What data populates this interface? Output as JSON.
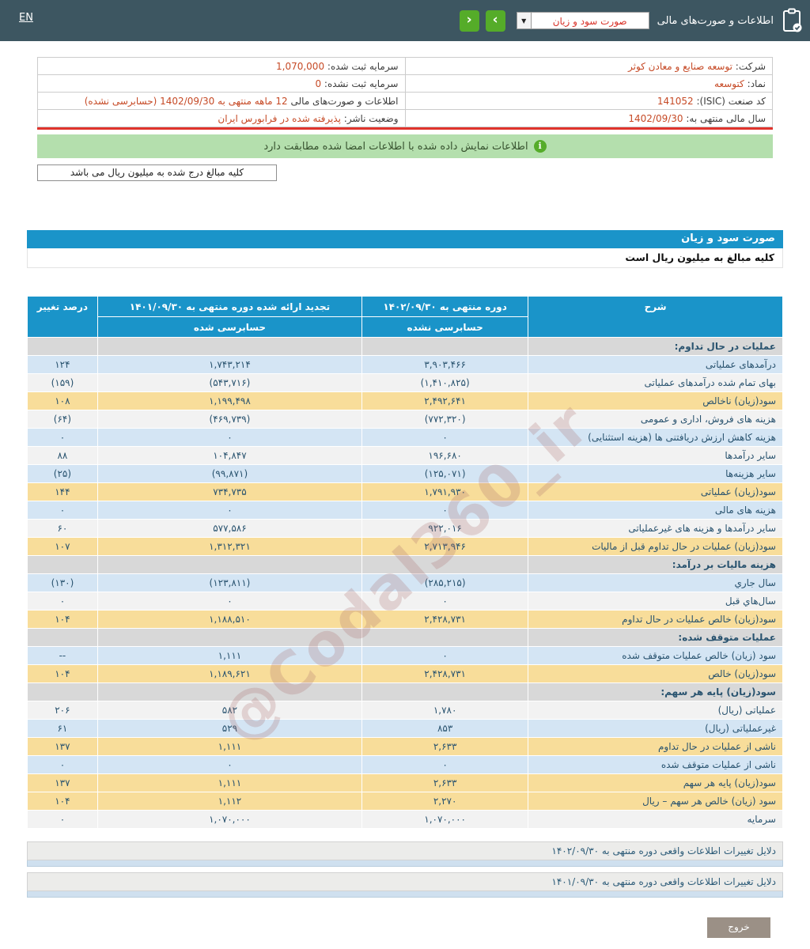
{
  "topbar": {
    "lang_link": "EN",
    "title": "اطلاعات و صورت‌های مالی",
    "report_select_value": "صورت سود و زیان",
    "select_arrow": "▼",
    "nav_left": "‹",
    "nav_right": "›"
  },
  "company_info": {
    "rows": [
      {
        "right_label": "شرکت:",
        "right_value": "توسعه صنایع و معادن کوثر",
        "left_label": "سرمایه ثبت شده:",
        "left_value": "1,070,000"
      },
      {
        "right_label": "نماد:",
        "right_value": "کتوسعه",
        "left_label": "سرمایه ثبت نشده:",
        "left_value": "0"
      },
      {
        "right_label": "کد صنعت (ISIC):",
        "right_value": "141052",
        "left_label": "اطلاعات و صورت‌های مالی",
        "left_value": "12 ماهه منتهی به 1402/09/30 (حسابرسی نشده)"
      },
      {
        "right_label": "سال مالی منتهی به:",
        "right_value": "1402/09/30",
        "left_label": "وضعیت ناشر:",
        "left_value": "پذیرفته شده در فرابورس ایران"
      }
    ]
  },
  "notice": {
    "icon": "info-icon",
    "icon_glyph": "i",
    "text": "اطلاعات نمایش داده شده با اطلاعات امضا شده مطابقت دارد"
  },
  "units_note": "کلیه مبالغ درج شده به میلیون ریال می باشد",
  "statement": {
    "title": "صورت سود و زیان",
    "units_line": "کلیه مبالغ به میلیون ریال است",
    "watermark": "@Codal360_ir",
    "header": {
      "description": "شرح",
      "col_current": "دوره منتهی به ۱۴۰۲/۰۹/۳۰",
      "col_current_sub": "حسابرسی نشده",
      "col_prior": "تجدید ارائه شده دوره منتهی به ۱۴۰۱/۰۹/۳۰",
      "col_prior_sub": "حسابرسی شده",
      "col_change": "درصد تغییر"
    },
    "rows": [
      {
        "type": "section",
        "label": "عملیات در حال تداوم:"
      },
      {
        "type": "data",
        "style": "blue",
        "label": "درآمدهای عملیاتی",
        "current": "۳,۹۰۳,۴۶۶",
        "prior": "۱,۷۴۳,۲۱۴",
        "change": "۱۲۴",
        "negative": false
      },
      {
        "type": "data",
        "style": "white",
        "label": "بهای تمام شده درآمدهای عملیاتی",
        "current": "(۱,۴۱۰,۸۲۵)",
        "prior": "(۵۴۳,۷۱۶)",
        "change": "(۱۵۹)",
        "negative": true
      },
      {
        "type": "data",
        "style": "yellow",
        "label": "سود(زیان) ناخالص",
        "current": "۲,۴۹۲,۶۴۱",
        "prior": "۱,۱۹۹,۴۹۸",
        "change": "۱۰۸",
        "negative": false
      },
      {
        "type": "data",
        "style": "white",
        "label": "هزینه های فروش، اداری و عمومی",
        "current": "(۷۷۲,۳۲۰)",
        "prior": "(۴۶۹,۷۳۹)",
        "change": "(۶۴)",
        "negative": true
      },
      {
        "type": "data",
        "style": "blue",
        "label": "هزینه کاهش ارزش دریافتنی ها (هزینه استثنایی)",
        "current": "۰",
        "prior": "۰",
        "change": "۰",
        "negative": false
      },
      {
        "type": "data",
        "style": "white",
        "label": "سایر درآمدها",
        "current": "۱۹۶,۶۸۰",
        "prior": "۱۰۴,۸۴۷",
        "change": "۸۸",
        "negative": false
      },
      {
        "type": "data",
        "style": "blue",
        "label": "سایر هزینه‌ها",
        "current": "(۱۲۵,۰۷۱)",
        "prior": "(۹۹,۸۷۱)",
        "change": "(۲۵)",
        "negative": true
      },
      {
        "type": "data",
        "style": "yellow",
        "label": "سود(زیان) عملیاتی",
        "current": "۱,۷۹۱,۹۳۰",
        "prior": "۷۳۴,۷۳۵",
        "change": "۱۴۴",
        "negative": false
      },
      {
        "type": "data",
        "style": "blue",
        "label": "هزینه های مالی",
        "current": "۰",
        "prior": "۰",
        "change": "۰",
        "negative": false
      },
      {
        "type": "data",
        "style": "white",
        "label": "سایر درآمدها و هزینه های غیرعملیاتی",
        "current": "۹۲۲,۰۱۶",
        "prior": "۵۷۷,۵۸۶",
        "change": "۶۰",
        "negative": false
      },
      {
        "type": "data",
        "style": "yellow",
        "label": "سود(زیان) عملیات در حال تداوم قبل از مالیات",
        "current": "۲,۷۱۳,۹۴۶",
        "prior": "۱,۳۱۲,۳۲۱",
        "change": "۱۰۷",
        "negative": false
      },
      {
        "type": "section",
        "label": "هزینه مالیات بر درآمد:"
      },
      {
        "type": "data",
        "style": "blue",
        "label": "سال جاري",
        "current": "(۲۸۵,۲۱۵)",
        "prior": "(۱۲۳,۸۱۱)",
        "change": "(۱۳۰)",
        "negative": true
      },
      {
        "type": "data",
        "style": "white",
        "label": "سال‌هاي قبل",
        "current": "۰",
        "prior": "۰",
        "change": "۰",
        "negative": false
      },
      {
        "type": "data",
        "style": "yellow",
        "label": "سود(زیان) خالص عملیات در حال تداوم",
        "current": "۲,۴۲۸,۷۳۱",
        "prior": "۱,۱۸۸,۵۱۰",
        "change": "۱۰۴",
        "negative": false
      },
      {
        "type": "section",
        "label": "عملیات متوقف شده:"
      },
      {
        "type": "data",
        "style": "blue",
        "label": "سود (زیان) خالص عملیات متوقف شده",
        "current": "۰",
        "prior": "۱,۱۱۱",
        "change": "--",
        "negative": false
      },
      {
        "type": "data",
        "style": "yellow",
        "label": "سود(زیان) خالص",
        "current": "۲,۴۲۸,۷۳۱",
        "prior": "۱,۱۸۹,۶۲۱",
        "change": "۱۰۴",
        "negative": false
      },
      {
        "type": "section",
        "label": "سود(زیان) پایه هر سهم:"
      },
      {
        "type": "data",
        "style": "white",
        "label": "عملیاتی (ریال)",
        "current": "۱,۷۸۰",
        "prior": "۵۸۲",
        "change": "۲۰۶",
        "negative": false
      },
      {
        "type": "data",
        "style": "blue",
        "label": "غیرعملیاتی (ریال)",
        "current": "۸۵۳",
        "prior": "۵۲۹",
        "change": "۶۱",
        "negative": false
      },
      {
        "type": "data",
        "style": "yellow",
        "label": "ناشی از عملیات در حال تداوم",
        "current": "۲,۶۳۳",
        "prior": "۱,۱۱۱",
        "change": "۱۳۷",
        "negative": false
      },
      {
        "type": "data",
        "style": "blue",
        "label": "ناشی از عملیات متوقف شده",
        "current": "۰",
        "prior": "۰",
        "change": "۰",
        "negative": false
      },
      {
        "type": "data",
        "style": "yellow",
        "label": "سود(زیان) پایه هر سهم",
        "current": "۲,۶۳۳",
        "prior": "۱,۱۱۱",
        "change": "۱۳۷",
        "negative": false
      },
      {
        "type": "data",
        "style": "yellow",
        "label": "سود (زیان) خالص هر سهم – ریال",
        "current": "۲,۲۷۰",
        "prior": "۱,۱۱۲",
        "change": "۱۰۴",
        "negative": false
      },
      {
        "type": "data",
        "style": "white",
        "label": "سرمایه",
        "current": "۱,۰۷۰,۰۰۰",
        "prior": "۱,۰۷۰,۰۰۰",
        "change": "۰",
        "negative": false
      }
    ]
  },
  "footnotes": [
    {
      "label": "دلایل تغییرات اطلاعات واقعی دوره منتهی به ۱۴۰۲/۰۹/۳۰"
    },
    {
      "label": "دلایل تغییرات اطلاعات واقعی دوره منتهی به ۱۴۰۱/۰۹/۳۰"
    }
  ],
  "exit_button": "خروج",
  "colors": {
    "topbar": "#3d5661",
    "accent_blue": "#1a94c9",
    "green_button": "#55ac29",
    "row_blue": "#d4e5f4",
    "row_yellow": "#f8dd9a",
    "row_section": "#d8d8d8",
    "negative_red": "#e60000",
    "info_value": "#c64a26",
    "notice_green": "#b4dfad",
    "red_divider": "#e0332c"
  }
}
